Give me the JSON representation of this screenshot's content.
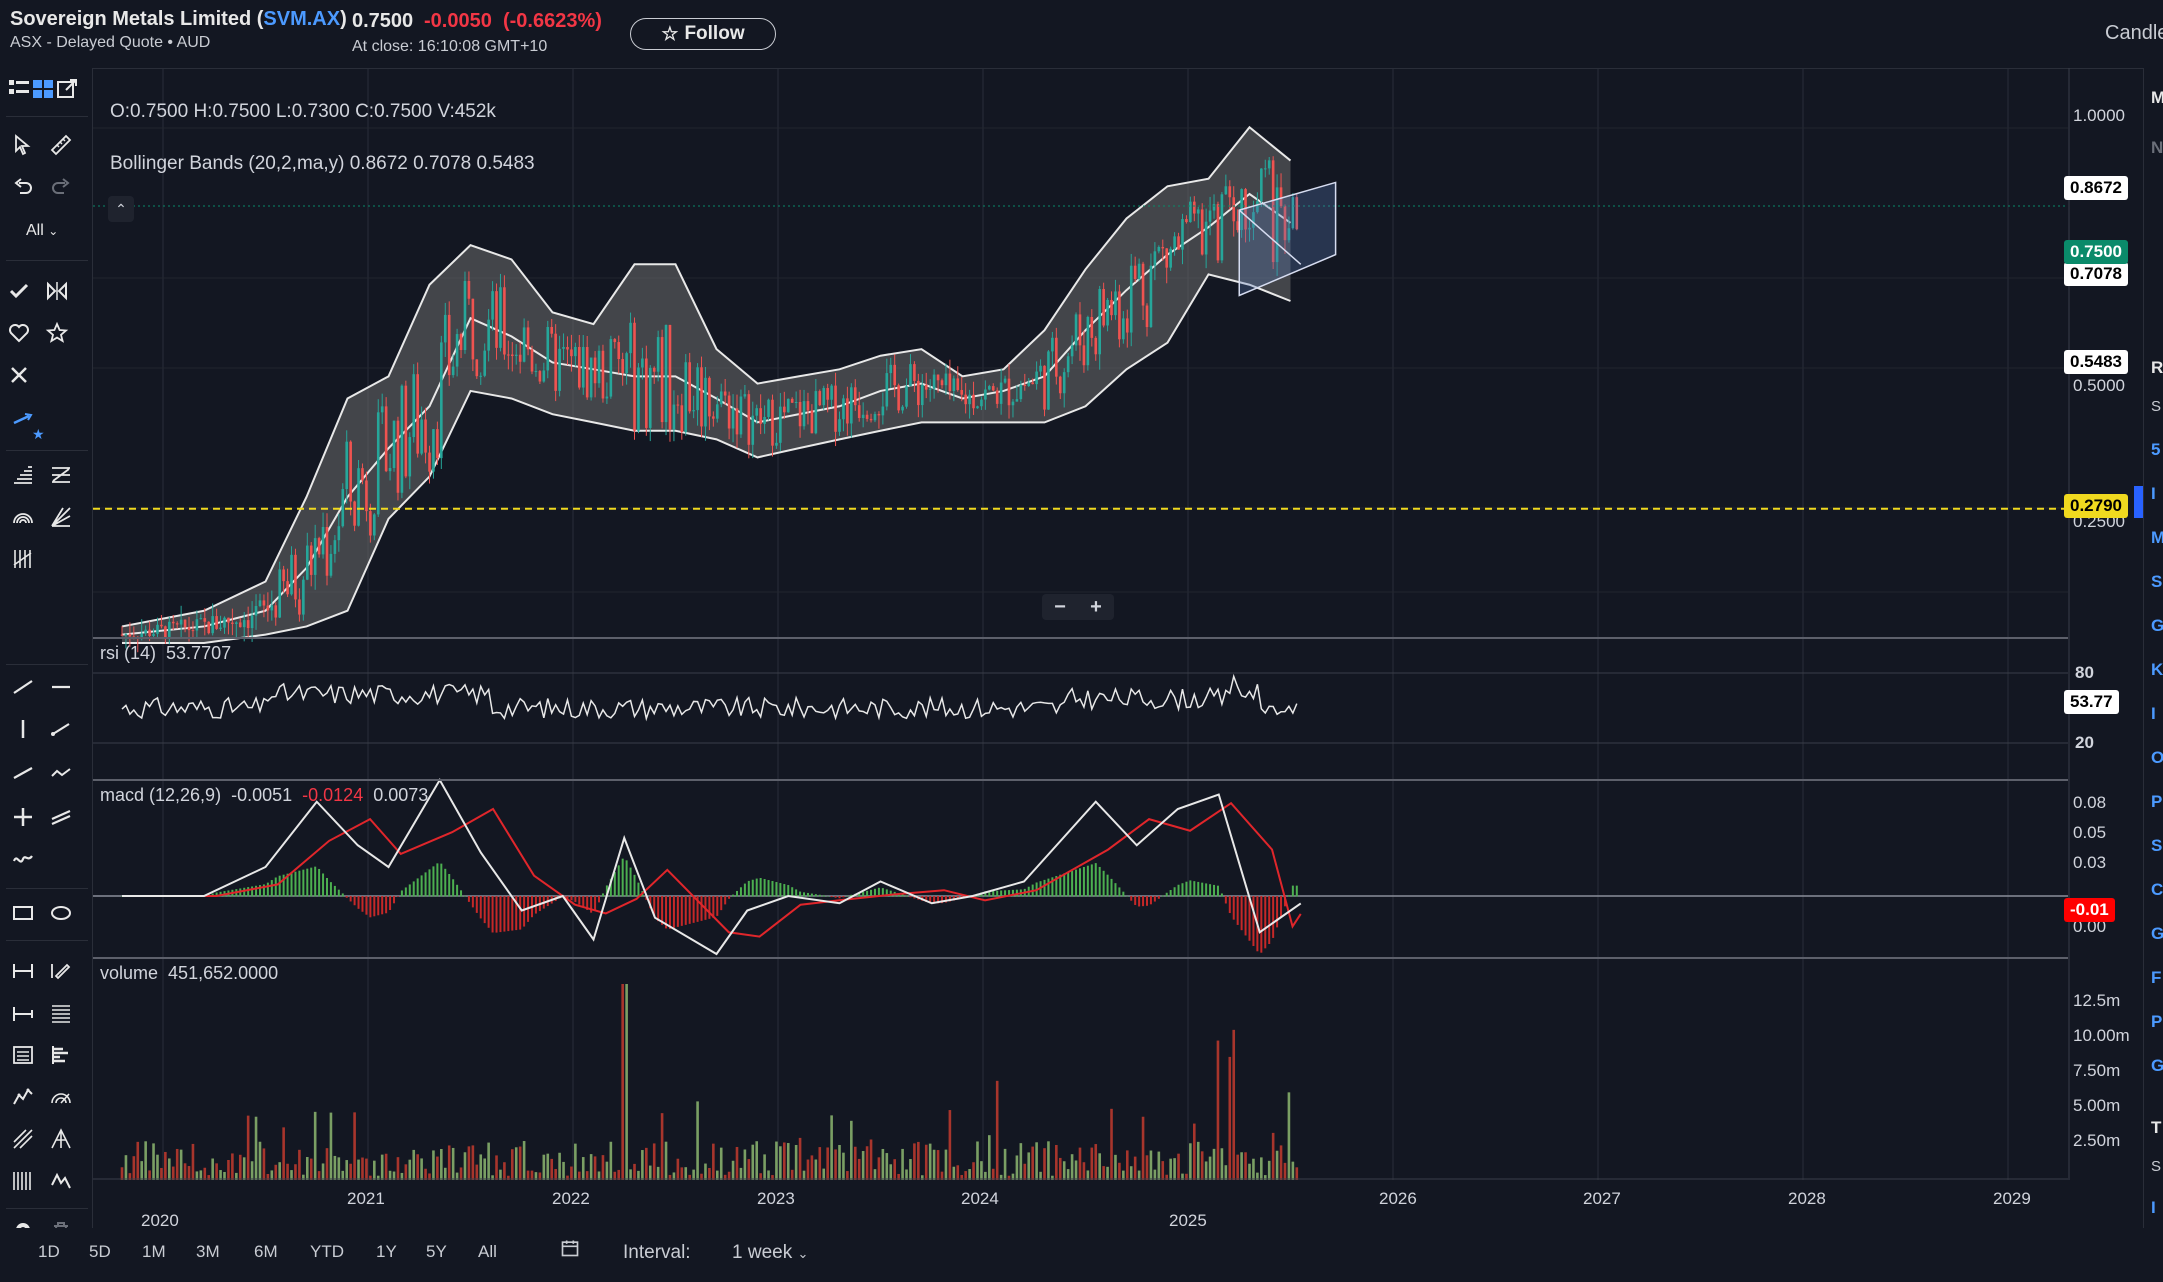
{
  "header": {
    "company": "Sovereign Metals Limited (",
    "ticker": "SVM.AX",
    "company_end": ")",
    "exchange": "ASX - Delayed Quote • AUD",
    "price": "0.7500",
    "change": "-0.0050",
    "change_pct": "(-0.6623%)",
    "close_time": "At close: 16:10:08 GMT+10",
    "follow_label": "Follow",
    "chart_type_label": "Candle"
  },
  "toolbar": {
    "all_label": "All"
  },
  "legend": {
    "ohlc": "O:0.7500   H:0.7500   L:0.7300   C:0.7500   V:452k",
    "bollinger": "Bollinger Bands (20,2,ma,y)   0.8672  0.7078  0.5483"
  },
  "price_axis": {
    "ticks": [
      "1.0000",
      "0.5000",
      "0.2500"
    ],
    "bb_upper": "0.8672",
    "last": "0.7500",
    "bb_mid": "0.7078",
    "bb_lower": "0.5483",
    "alert": "0.2790"
  },
  "rsi": {
    "label": "rsi (14)",
    "value": "53.7707",
    "ticks": [
      "80",
      "20"
    ],
    "box": "53.77"
  },
  "macd": {
    "label": "macd (12,26,9)",
    "v1": "-0.0051",
    "v2": "-0.0124",
    "v3": "0.0073",
    "ticks": [
      "0.08",
      "0.05",
      "0.03",
      "0.00"
    ],
    "box": "-0.01"
  },
  "volume": {
    "label": "volume",
    "value": "451,652.0000",
    "ticks": [
      "12.5m",
      "10.00m",
      "7.50m",
      "5.00m",
      "2.50m"
    ]
  },
  "time_axis": [
    "2020",
    "2021",
    "2022",
    "2023",
    "2024",
    "2025",
    "2026",
    "2027",
    "2028",
    "2029"
  ],
  "zoom": {
    "minus": "−",
    "plus": "+"
  },
  "ranges": [
    "1D",
    "5D",
    "1M",
    "3M",
    "6M",
    "YTD",
    "1Y",
    "5Y",
    "All"
  ],
  "interval": {
    "label": "Interval:",
    "value": "1 week"
  },
  "right_panel_letters": [
    "M",
    "N",
    "R",
    "S",
    "5",
    "I",
    "M",
    "S",
    "G",
    "K",
    "I",
    "O",
    "P",
    "S",
    "C",
    "G",
    "F",
    "P",
    "G",
    "T",
    "S",
    "I"
  ],
  "colors": {
    "background": "#131722",
    "up": "#26a69a",
    "down": "#ef5350",
    "negative_text": "#f23645",
    "link": "#4c9aff",
    "alert_line": "#f0d91f",
    "band_fill": "#6b6b6b",
    "macd_signal": "#e0262b"
  },
  "chart_data": {
    "type": "line",
    "x_axis": [
      "2020",
      "2021",
      "2022",
      "2023",
      "2024",
      "2025"
    ],
    "title": "",
    "price_scale": "log",
    "price_ylim": [
      0.18,
      1.05
    ],
    "bollinger": {
      "x": [
        2019.8,
        2020.2,
        2020.5,
        2020.7,
        2020.9,
        2021.1,
        2021.3,
        2021.5,
        2021.7,
        2021.9,
        2022.1,
        2022.3,
        2022.5,
        2022.7,
        2022.9,
        2023.1,
        2023.3,
        2023.5,
        2023.7,
        2023.9,
        2024.1,
        2024.3,
        2024.5,
        2024.7,
        2024.9,
        2025.1,
        2025.3,
        2025.5
      ],
      "mid": [
        0.185,
        0.19,
        0.2,
        0.23,
        0.29,
        0.34,
        0.39,
        0.52,
        0.49,
        0.45,
        0.44,
        0.43,
        0.43,
        0.4,
        0.37,
        0.38,
        0.39,
        0.41,
        0.42,
        0.4,
        0.41,
        0.43,
        0.5,
        0.57,
        0.64,
        0.7,
        0.78,
        0.71
      ],
      "upper": [
        0.19,
        0.2,
        0.22,
        0.29,
        0.4,
        0.43,
        0.58,
        0.66,
        0.63,
        0.53,
        0.51,
        0.62,
        0.62,
        0.47,
        0.42,
        0.43,
        0.44,
        0.46,
        0.47,
        0.43,
        0.44,
        0.5,
        0.61,
        0.72,
        0.8,
        0.82,
        0.97,
        0.87
      ],
      "lower": [
        0.18,
        0.18,
        0.185,
        0.19,
        0.2,
        0.27,
        0.31,
        0.41,
        0.4,
        0.38,
        0.37,
        0.36,
        0.36,
        0.35,
        0.33,
        0.34,
        0.35,
        0.36,
        0.37,
        0.37,
        0.37,
        0.37,
        0.39,
        0.44,
        0.48,
        0.6,
        0.58,
        0.55
      ]
    },
    "last_close": 0.75,
    "alert_level": 0.279,
    "rsi": {
      "value": 53.77,
      "ylim": [
        0,
        100
      ],
      "levels": [
        20,
        80
      ]
    },
    "macd": {
      "macd": -0.0051,
      "signal": -0.0124,
      "hist": 0.0073
    },
    "volume": {
      "last": 451652,
      "ylim": [
        0,
        15000000
      ]
    }
  }
}
